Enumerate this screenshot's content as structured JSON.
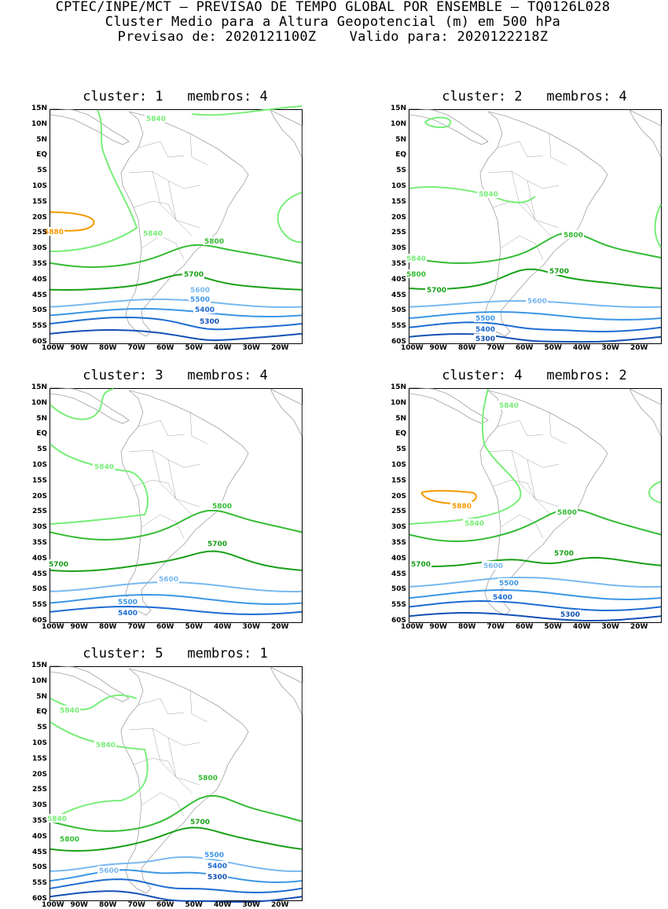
{
  "header": {
    "line1": "CPTEC/INPE/MCT – PREVISAO DE TEMPO GLOBAL POR ENSEMBLE – TQ0126L028",
    "line2": "Cluster Medio para a Altura Geopotencial (m) em 500 hPa",
    "line3": "Previsao de: 2020121100Z    Valido para: 2020122218Z"
  },
  "axes": {
    "lat_ticks": [
      "15N",
      "10N",
      "5N",
      "EQ",
      "5S",
      "10S",
      "15S",
      "20S",
      "25S",
      "30S",
      "35S",
      "40S",
      "45S",
      "50S",
      "55S",
      "60S"
    ],
    "lon_ticks": [
      "100W",
      "90W",
      "80W",
      "70W",
      "60W",
      "50W",
      "40W",
      "30W",
      "20W"
    ]
  },
  "colors": {
    "c5880": "#f59a00",
    "c5840": "#78ee78",
    "c5800": "#34bc34",
    "c5700": "#18a018",
    "c5600": "#78b8f0",
    "c5500": "#3c96e6",
    "c5400": "#1c6cd2",
    "c5300": "#1450b4",
    "c5200": "#5a2ab4",
    "coast": "#a0a0a0"
  },
  "panels": [
    {
      "title": "cluster: 1   membros: 4",
      "labels": [
        "5840",
        "5880",
        "5840",
        "5800",
        "5700",
        "5600",
        "5500",
        "5400",
        "5300"
      ]
    },
    {
      "title": "cluster: 2   membros: 4",
      "labels": [
        "5840",
        "5840",
        "5800",
        "5800",
        "5700",
        "5700",
        "5600",
        "5500",
        "5400",
        "5300"
      ]
    },
    {
      "title": "cluster: 3   membros: 4",
      "labels": [
        "5840",
        "5800",
        "5700",
        "5700",
        "5600",
        "5500",
        "5400"
      ]
    },
    {
      "title": "cluster: 4   membros: 2",
      "labels": [
        "5840",
        "5880",
        "5840",
        "5800",
        "5700",
        "5700",
        "5600",
        "5500",
        "5400",
        "5300"
      ]
    },
    {
      "title": "cluster: 5   membros: 1",
      "labels": [
        "5840",
        "5840",
        "5800",
        "5840",
        "5800",
        "5700",
        "5600",
        "5500",
        "5400",
        "5300"
      ]
    }
  ]
}
